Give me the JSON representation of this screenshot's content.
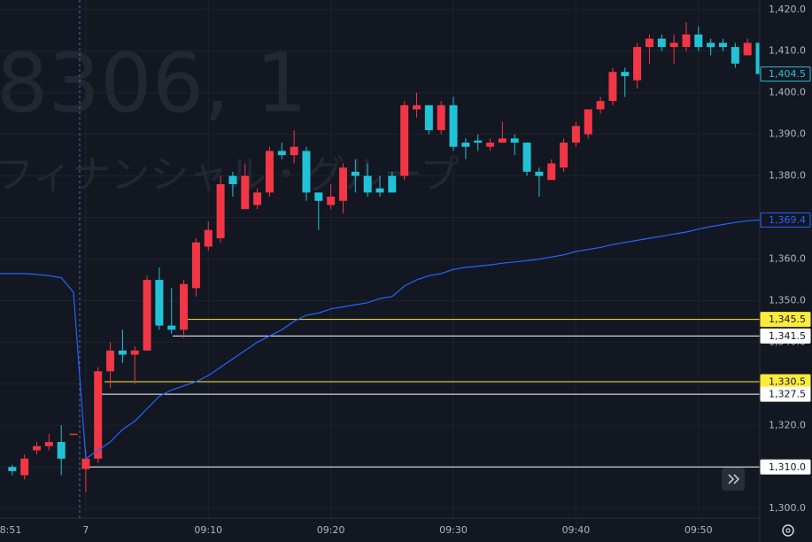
{
  "chart_data": {
    "type": "candlestick",
    "watermark": {
      "symbol": "8306, 1",
      "name": "フィナンシャル・グループ"
    },
    "x": [
      "08:54",
      "08:55",
      "08:56",
      "08:57",
      "08:58",
      "08:59",
      "09:00",
      "09:01",
      "09:02",
      "09:03",
      "09:04",
      "09:05",
      "09:06",
      "09:07",
      "09:08",
      "09:09",
      "09:10",
      "09:11",
      "09:12",
      "09:13",
      "09:14",
      "09:15",
      "09:16",
      "09:17",
      "09:18",
      "09:19",
      "09:20",
      "09:21",
      "09:22",
      "09:23",
      "09:24",
      "09:25",
      "09:26",
      "09:27",
      "09:28",
      "09:29",
      "09:30",
      "09:31",
      "09:32",
      "09:33",
      "09:34",
      "09:35",
      "09:36",
      "09:37",
      "09:38",
      "09:39",
      "09:40",
      "09:41",
      "09:42",
      "09:43",
      "09:44",
      "09:45",
      "09:46",
      "09:47",
      "09:48",
      "09:49",
      "09:50",
      "09:51",
      "09:52",
      "09:53",
      "09:54",
      "09:55"
    ],
    "open": [
      1310,
      1308,
      1314,
      1315,
      1316,
      1318,
      1309.5,
      1312,
      1333,
      1338,
      1337,
      1338,
      1355,
      1344,
      1343,
      1353,
      1363,
      1365,
      1380,
      1372,
      1373,
      1376,
      1386,
      1385,
      1386,
      1376,
      1373,
      1374,
      1381,
      1380,
      1377,
      1380,
      1380,
      1396,
      1397,
      1391,
      1397,
      1388,
      1388.5,
      1387,
      1388,
      1389,
      1388,
      1381,
      1379,
      1382,
      1388,
      1390,
      1396,
      1398,
      1405,
      1403,
      1411,
      1413,
      1411,
      1411,
      1414,
      1412,
      1412,
      1411,
      1409,
      1412
    ],
    "high": [
      1310.5,
      1313,
      1316,
      1318,
      1320,
      1318,
      1314,
      1334,
      1340,
      1343,
      1339,
      1356,
      1358,
      1353,
      1355,
      1365,
      1369,
      1380,
      1381,
      1383,
      1377,
      1387,
      1388,
      1391,
      1387,
      1376,
      1378,
      1383,
      1384,
      1383,
      1380,
      1381,
      1398,
      1400,
      1397,
      1398,
      1399,
      1389,
      1390,
      1389,
      1393,
      1390,
      1388,
      1382,
      1384,
      1389,
      1393,
      1396,
      1399,
      1406,
      1406,
      1412,
      1414,
      1414,
      1414,
      1417,
      1416,
      1413,
      1413,
      1412,
      1413,
      1413
    ],
    "low": [
      1308,
      1307,
      1313,
      1314,
      1308,
      1318,
      1304,
      1311,
      1329,
      1335,
      1330,
      1338,
      1343,
      1342,
      1341,
      1351,
      1362,
      1364,
      1375,
      1372,
      1372,
      1375,
      1384,
      1383,
      1374,
      1367,
      1372,
      1371,
      1376,
      1375,
      1375,
      1376,
      1379,
      1394,
      1390,
      1390,
      1386,
      1384,
      1386,
      1386,
      1388,
      1385,
      1380,
      1375,
      1379,
      1381,
      1387,
      1389,
      1395,
      1397,
      1399,
      1401,
      1407,
      1410,
      1407,
      1410,
      1410,
      1409,
      1410,
      1406,
      1409,
      1403
    ],
    "close": [
      1309,
      1312,
      1315,
      1316,
      1312,
      1318,
      1312,
      1333,
      1338,
      1337,
      1338,
      1355,
      1344,
      1343,
      1354,
      1364,
      1367,
      1378,
      1378,
      1380,
      1376,
      1386,
      1385,
      1387,
      1376,
      1374,
      1375,
      1382,
      1380,
      1376,
      1376,
      1376,
      1397,
      1397,
      1391,
      1397,
      1387,
      1387,
      1388,
      1388,
      1389,
      1388,
      1381,
      1380,
      1383,
      1388,
      1392,
      1396,
      1398,
      1405,
      1404,
      1411,
      1413,
      1411,
      1412,
      1414,
      1411,
      1411,
      1411,
      1407,
      1412,
      1404.5
    ],
    "up_color": "#f23645",
    "down_color": "#22c2d6",
    "vwap": {
      "color": "#2962ff",
      "values": [
        1356.5,
        1356.5,
        1356.3,
        1356,
        1355.5,
        1352,
        1312,
        1314,
        1316,
        1319,
        1321,
        1324,
        1327,
        1328.5,
        1329.5,
        1330.5,
        1332,
        1334,
        1336,
        1338,
        1340,
        1341.5,
        1343,
        1345,
        1346.5,
        1347,
        1348,
        1348.5,
        1349,
        1349.5,
        1350.5,
        1351,
        1353.5,
        1355,
        1356,
        1356.5,
        1357.5,
        1358,
        1358.3,
        1358.6,
        1359,
        1359.3,
        1359.6,
        1360,
        1360.5,
        1361,
        1361.8,
        1362.3,
        1362.8,
        1363.5,
        1364,
        1364.5,
        1365,
        1365.5,
        1366,
        1366.5,
        1367.2,
        1367.8,
        1368.3,
        1368.8,
        1369.2,
        1369.4
      ],
      "end_label": {
        "value": 1369.4,
        "label": "1,369.4"
      }
    },
    "last_price": {
      "value": 1404.5,
      "label": "1,404.5",
      "color": "#22c2d6"
    },
    "levels": [
      {
        "value": 1345.5,
        "label": "1,345.5",
        "color": "#ffeb3b"
      },
      {
        "value": 1341.5,
        "label": "1,341.5",
        "color": "#ffffff"
      },
      {
        "value": 1330.5,
        "label": "1,330.5",
        "color": "#ffeb3b"
      },
      {
        "value": 1327.5,
        "label": "1,327.5",
        "color": "#ffffff"
      },
      {
        "value": 1310,
        "label": "1,310.0",
        "color": "#ffffff"
      }
    ],
    "xlim": [
      "08:53",
      "09:55"
    ],
    "xticks": [
      {
        "value": "08:51",
        "label": "8:51"
      },
      {
        "value": "09:00",
        "label": "7"
      },
      "09:10",
      "09:20",
      "09:30",
      "09:40",
      "09:50"
    ],
    "ylim": [
      1297.7,
      1422.3
    ],
    "yticks": [
      {
        "value": 1300,
        "label": "1,300.0"
      },
      {
        "value": 1310,
        "label": "1,310.0"
      },
      {
        "value": 1320,
        "label": "1,320.0"
      },
      {
        "value": 1330,
        "label": "1,330.0"
      },
      {
        "value": 1340,
        "label": "1,340.0"
      },
      {
        "value": 1350,
        "label": "1,350.0"
      },
      {
        "value": 1360,
        "label": "1,360.0"
      },
      {
        "value": 1370,
        "label": "1,370.0"
      },
      {
        "value": 1380,
        "label": "1,380.0"
      },
      {
        "value": 1390,
        "label": "1,390.0"
      },
      {
        "value": 1400,
        "label": "1,400.0"
      },
      {
        "value": 1410,
        "label": "1,410.0"
      },
      {
        "value": 1420,
        "label": "1,420.0"
      }
    ],
    "grid": true
  }
}
